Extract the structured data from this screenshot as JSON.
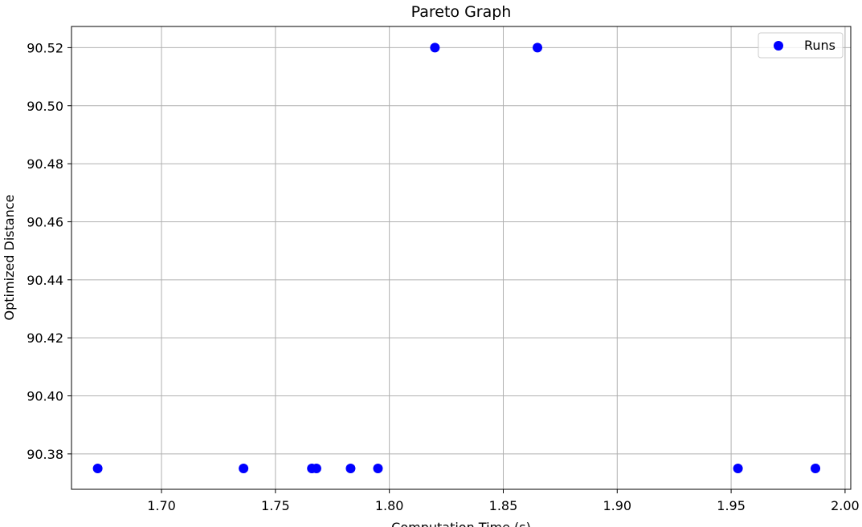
{
  "chart_data": {
    "type": "scatter",
    "title": "Pareto Graph",
    "xlabel": "Computation Time (s)",
    "ylabel": "Optimized Distance",
    "xlim": [
      1.6605,
      2.0025
    ],
    "ylim": [
      90.3678,
      90.5273
    ],
    "xticks": [
      1.7,
      1.75,
      1.8,
      1.85,
      1.9,
      1.95,
      2.0
    ],
    "xtick_labels": [
      "1.70",
      "1.75",
      "1.80",
      "1.85",
      "1.90",
      "1.95",
      "2.00"
    ],
    "yticks": [
      90.38,
      90.4,
      90.42,
      90.44,
      90.46,
      90.48,
      90.5,
      90.52
    ],
    "ytick_labels": [
      "90.38",
      "90.40",
      "90.42",
      "90.44",
      "90.46",
      "90.48",
      "90.50",
      "90.52"
    ],
    "grid": true,
    "legend": {
      "position": "top-right",
      "entries": [
        "Runs"
      ]
    },
    "series": [
      {
        "name": "Runs",
        "color": "#0000ff",
        "points": [
          {
            "x": 1.672,
            "y": 90.375
          },
          {
            "x": 1.736,
            "y": 90.375
          },
          {
            "x": 1.766,
            "y": 90.375
          },
          {
            "x": 1.768,
            "y": 90.375
          },
          {
            "x": 1.783,
            "y": 90.375
          },
          {
            "x": 1.795,
            "y": 90.375
          },
          {
            "x": 1.82,
            "y": 90.52
          },
          {
            "x": 1.865,
            "y": 90.52
          },
          {
            "x": 1.953,
            "y": 90.375
          },
          {
            "x": 1.987,
            "y": 90.375
          }
        ]
      }
    ]
  }
}
